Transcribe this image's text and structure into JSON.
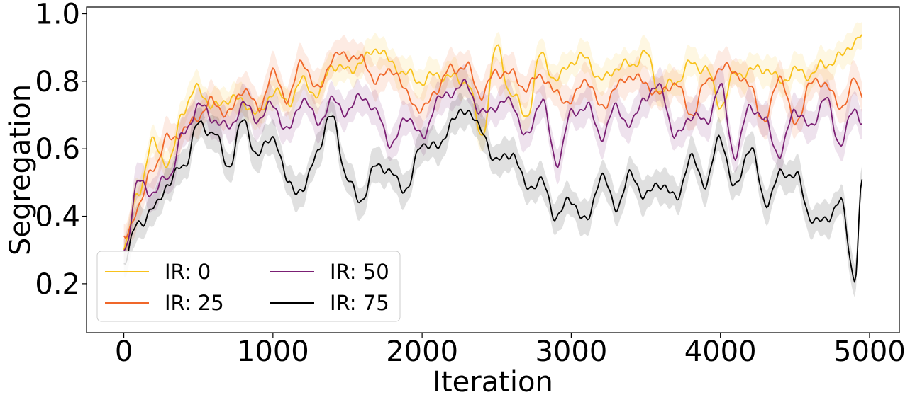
{
  "chart_data": {
    "type": "line",
    "xlabel": "Iteration",
    "ylabel": "Segregation",
    "xlim": [
      -250,
      5200
    ],
    "ylim": [
      0.055,
      1.02
    ],
    "xticks": [
      0,
      1000,
      2000,
      3000,
      4000,
      5000
    ],
    "yticks": [
      0.2,
      0.4,
      0.6,
      0.8,
      1.0
    ],
    "xtick_labels": [
      "0",
      "1000",
      "2000",
      "3000",
      "4000",
      "5000"
    ],
    "ytick_labels": [
      "0.2",
      "0.4",
      "0.6",
      "0.8",
      "1.0"
    ],
    "grid": false,
    "legend_position": "lower-left",
    "legend_columns": 2,
    "series": [
      {
        "name": "IR: 0",
        "color": "#f8c21c",
        "band": 0.04,
        "x": [
          0,
          100,
          200,
          300,
          400,
          500,
          600,
          700,
          800,
          900,
          1000,
          1100,
          1200,
          1300,
          1400,
          1500,
          1600,
          1700,
          1800,
          1900,
          2000,
          2100,
          2200,
          2300,
          2400,
          2500,
          2600,
          2700,
          2800,
          2900,
          3000,
          3100,
          3200,
          3300,
          3400,
          3500,
          3600,
          3700,
          3800,
          3900,
          4000,
          4100,
          4200,
          4300,
          4400,
          4500,
          4600,
          4700,
          4800,
          4900,
          4950
        ],
        "y": [
          0.3,
          0.48,
          0.62,
          0.55,
          0.72,
          0.78,
          0.72,
          0.75,
          0.74,
          0.7,
          0.77,
          0.74,
          0.8,
          0.76,
          0.85,
          0.83,
          0.86,
          0.9,
          0.85,
          0.82,
          0.8,
          0.82,
          0.81,
          0.8,
          0.64,
          0.9,
          0.76,
          0.7,
          0.88,
          0.8,
          0.86,
          0.87,
          0.8,
          0.84,
          0.85,
          0.88,
          0.77,
          0.8,
          0.85,
          0.84,
          0.73,
          0.82,
          0.83,
          0.84,
          0.8,
          0.83,
          0.82,
          0.85,
          0.87,
          0.92,
          0.93
        ]
      },
      {
        "name": "IR: 25",
        "color": "#f0672a",
        "band": 0.045,
        "x": [
          0,
          100,
          200,
          300,
          400,
          500,
          600,
          700,
          800,
          900,
          1000,
          1100,
          1200,
          1300,
          1400,
          1500,
          1600,
          1700,
          1800,
          1900,
          2000,
          2100,
          2200,
          2300,
          2400,
          2500,
          2600,
          2700,
          2800,
          2900,
          3000,
          3100,
          3200,
          3300,
          3400,
          3500,
          3600,
          3700,
          3800,
          3900,
          4000,
          4100,
          4200,
          4300,
          4400,
          4500,
          4600,
          4700,
          4800,
          4900,
          4950
        ],
        "y": [
          0.33,
          0.43,
          0.55,
          0.63,
          0.65,
          0.7,
          0.74,
          0.7,
          0.78,
          0.72,
          0.82,
          0.75,
          0.86,
          0.77,
          0.87,
          0.88,
          0.86,
          0.8,
          0.84,
          0.76,
          0.71,
          0.78,
          0.84,
          0.84,
          0.76,
          0.83,
          0.82,
          0.78,
          0.82,
          0.76,
          0.74,
          0.81,
          0.72,
          0.78,
          0.82,
          0.79,
          0.76,
          0.8,
          0.7,
          0.79,
          0.84,
          0.83,
          0.78,
          0.68,
          0.82,
          0.67,
          0.79,
          0.8,
          0.72,
          0.8,
          0.75
        ]
      },
      {
        "name": "IR: 50",
        "color": "#7b1f74",
        "band": 0.045,
        "x": [
          0,
          100,
          200,
          300,
          400,
          500,
          600,
          700,
          800,
          900,
          1000,
          1100,
          1200,
          1300,
          1400,
          1500,
          1600,
          1700,
          1800,
          1900,
          2000,
          2100,
          2200,
          2300,
          2400,
          2500,
          2600,
          2700,
          2800,
          2900,
          3000,
          3100,
          3200,
          3300,
          3400,
          3500,
          3600,
          3700,
          3800,
          3900,
          4000,
          4100,
          4200,
          4300,
          4400,
          4500,
          4600,
          4700,
          4800,
          4900,
          4950
        ],
        "y": [
          0.3,
          0.5,
          0.47,
          0.52,
          0.64,
          0.73,
          0.69,
          0.66,
          0.73,
          0.69,
          0.73,
          0.65,
          0.75,
          0.68,
          0.74,
          0.71,
          0.76,
          0.7,
          0.61,
          0.7,
          0.63,
          0.74,
          0.77,
          0.79,
          0.7,
          0.73,
          0.74,
          0.63,
          0.75,
          0.56,
          0.7,
          0.73,
          0.64,
          0.72,
          0.67,
          0.76,
          0.78,
          0.63,
          0.7,
          0.68,
          0.78,
          0.58,
          0.73,
          0.68,
          0.58,
          0.72,
          0.66,
          0.75,
          0.62,
          0.71,
          0.69
        ]
      },
      {
        "name": "IR: 75",
        "color": "#000000",
        "band": 0.045,
        "x": [
          0,
          100,
          200,
          300,
          400,
          500,
          600,
          700,
          800,
          900,
          1000,
          1100,
          1200,
          1300,
          1400,
          1500,
          1600,
          1700,
          1800,
          1900,
          2000,
          2100,
          2200,
          2300,
          2400,
          2500,
          2600,
          2700,
          2800,
          2900,
          3000,
          3100,
          3200,
          3300,
          3400,
          3500,
          3600,
          3700,
          3800,
          3900,
          4000,
          4100,
          4200,
          4300,
          4400,
          4500,
          4600,
          4700,
          4800,
          4900,
          4950
        ],
        "y": [
          0.27,
          0.38,
          0.42,
          0.5,
          0.55,
          0.67,
          0.65,
          0.55,
          0.68,
          0.58,
          0.64,
          0.5,
          0.47,
          0.6,
          0.7,
          0.5,
          0.45,
          0.56,
          0.52,
          0.48,
          0.62,
          0.6,
          0.68,
          0.72,
          0.65,
          0.56,
          0.59,
          0.49,
          0.5,
          0.4,
          0.45,
          0.38,
          0.52,
          0.43,
          0.52,
          0.46,
          0.5,
          0.45,
          0.57,
          0.5,
          0.63,
          0.48,
          0.61,
          0.44,
          0.52,
          0.53,
          0.4,
          0.38,
          0.45,
          0.22,
          0.5
        ]
      }
    ]
  }
}
